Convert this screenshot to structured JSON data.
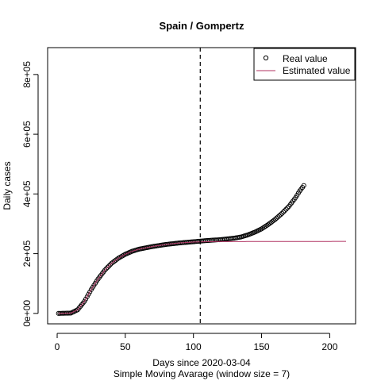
{
  "chart_data": {
    "type": "scatter",
    "title": "Spain / Gompertz",
    "xlabel": "Days since 2020-03-04",
    "subtitle": "Simple Moving Avarage (window size = 7)",
    "ylabel": "Daily cases",
    "xlim": [
      -7,
      219
    ],
    "ylim": [
      -35000,
      890000
    ],
    "x_ticks": [
      0,
      50,
      100,
      150,
      200
    ],
    "x_tick_labels": [
      "0",
      "50",
      "100",
      "150",
      "200"
    ],
    "y_ticks": [
      0,
      200000,
      400000,
      600000,
      800000
    ],
    "y_tick_labels": [
      "0e+00",
      "2e+05",
      "4e+05",
      "6e+05",
      "8e+05"
    ],
    "grid": false,
    "legend_position": "top-right",
    "vline": {
      "x": 105,
      "style": "dashed",
      "color": "#000000"
    },
    "series": [
      {
        "name": "Real value",
        "kind": "points",
        "marker": "open-circle",
        "color": "#000000",
        "x_start": 1,
        "x_end": 181,
        "knots": [
          [
            1,
            0
          ],
          [
            10,
            1000
          ],
          [
            15,
            12000
          ],
          [
            20,
            40000
          ],
          [
            25,
            80000
          ],
          [
            30,
            115000
          ],
          [
            35,
            145000
          ],
          [
            40,
            168000
          ],
          [
            45,
            185000
          ],
          [
            50,
            198000
          ],
          [
            55,
            208000
          ],
          [
            60,
            215000
          ],
          [
            70,
            224000
          ],
          [
            80,
            231000
          ],
          [
            90,
            236000
          ],
          [
            100,
            240000
          ],
          [
            110,
            244000
          ],
          [
            120,
            247000
          ],
          [
            130,
            252000
          ],
          [
            135,
            256000
          ],
          [
            140,
            263000
          ],
          [
            145,
            272000
          ],
          [
            150,
            283000
          ],
          [
            155,
            298000
          ],
          [
            160,
            315000
          ],
          [
            165,
            335000
          ],
          [
            170,
            358000
          ],
          [
            175,
            388000
          ],
          [
            178,
            410000
          ],
          [
            181,
            428000
          ]
        ]
      },
      {
        "name": "Estimated value",
        "kind": "line",
        "color": "#b03060",
        "x_start": 1,
        "x_end": 212,
        "knots": [
          [
            1,
            0
          ],
          [
            10,
            1000
          ],
          [
            15,
            12000
          ],
          [
            20,
            40000
          ],
          [
            25,
            80000
          ],
          [
            30,
            115000
          ],
          [
            35,
            145000
          ],
          [
            40,
            168000
          ],
          [
            45,
            185000
          ],
          [
            50,
            198000
          ],
          [
            55,
            208000
          ],
          [
            60,
            215000
          ],
          [
            70,
            224000
          ],
          [
            80,
            231000
          ],
          [
            90,
            236000
          ],
          [
            100,
            239000
          ],
          [
            110,
            240000
          ],
          [
            120,
            240500
          ],
          [
            212,
            241000
          ]
        ]
      }
    ]
  }
}
